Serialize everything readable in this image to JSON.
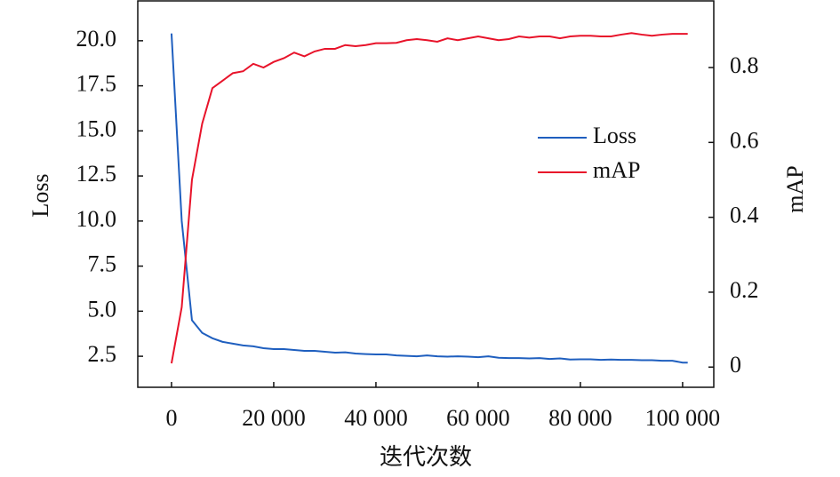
{
  "chart_data": {
    "type": "line",
    "x_label": "迭代次数",
    "y_label": "Loss",
    "y2_label": "mAP",
    "x": [
      0,
      2000,
      4000,
      6000,
      8000,
      10000,
      12000,
      14000,
      16000,
      18000,
      20000,
      22000,
      24000,
      26000,
      28000,
      30000,
      32000,
      34000,
      36000,
      38000,
      40000,
      42000,
      44000,
      46000,
      48000,
      50000,
      52000,
      54000,
      56000,
      58000,
      60000,
      62000,
      64000,
      66000,
      68000,
      70000,
      72000,
      74000,
      76000,
      78000,
      80000,
      82000,
      84000,
      86000,
      88000,
      90000,
      92000,
      94000,
      96000,
      98000,
      100000,
      101000
    ],
    "series": [
      {
        "name": "Loss",
        "color": "#1f5fbf",
        "axis": "y",
        "values": [
          20.4,
          10,
          4.5,
          3.8,
          3.5,
          3.3,
          3.2,
          3.1,
          3.05,
          2.95,
          2.9,
          2.9,
          2.85,
          2.8,
          2.8,
          2.75,
          2.7,
          2.72,
          2.65,
          2.62,
          2.6,
          2.6,
          2.55,
          2.52,
          2.5,
          2.55,
          2.5,
          2.48,
          2.5,
          2.48,
          2.45,
          2.5,
          2.42,
          2.4,
          2.4,
          2.38,
          2.4,
          2.35,
          2.38,
          2.32,
          2.33,
          2.33,
          2.3,
          2.32,
          2.3,
          2.3,
          2.28,
          2.28,
          2.25,
          2.25,
          2.15,
          2.15
        ]
      },
      {
        "name": "mAP",
        "color": "#e8132a",
        "axis": "y2",
        "values": [
          0.01,
          0.16,
          0.5,
          0.65,
          0.745,
          0.765,
          0.785,
          0.79,
          0.81,
          0.8,
          0.815,
          0.825,
          0.84,
          0.83,
          0.843,
          0.85,
          0.85,
          0.86,
          0.857,
          0.86,
          0.865,
          0.865,
          0.866,
          0.873,
          0.876,
          0.873,
          0.869,
          0.878,
          0.873,
          0.878,
          0.883,
          0.878,
          0.873,
          0.876,
          0.883,
          0.88,
          0.883,
          0.883,
          0.878,
          0.883,
          0.885,
          0.885,
          0.883,
          0.883,
          0.888,
          0.892,
          0.888,
          0.885,
          0.888,
          0.89,
          0.89,
          0.89
        ]
      }
    ],
    "xlim": [
      -6600,
      106100
    ],
    "xticks": [
      0,
      {
        "value": 20000,
        "label": "20 000"
      },
      {
        "value": 40000,
        "label": "40 000"
      },
      {
        "value": 60000,
        "label": "60 000"
      },
      {
        "value": 80000,
        "label": "80 000"
      },
      {
        "value": 100000,
        "label": "100 000"
      }
    ],
    "ylim": [
      0.78,
      22.21
    ],
    "yticks": [
      2.5,
      {
        "value": 5,
        "label": "5.0"
      },
      {
        "value": 7.5,
        "label": "7.5"
      },
      {
        "value": 10,
        "label": "10.0"
      },
      {
        "value": 12.5,
        "label": "12.5"
      },
      {
        "value": 15,
        "label": "15.0"
      },
      {
        "value": 17.5,
        "label": "17.5"
      },
      {
        "value": 20,
        "label": "20.0"
      }
    ],
    "y2lim": [
      -0.054,
      0.978
    ],
    "y2ticks": [
      0,
      0.2,
      0.4,
      0.6,
      0.8
    ],
    "legend": "center right",
    "grid": false
  }
}
